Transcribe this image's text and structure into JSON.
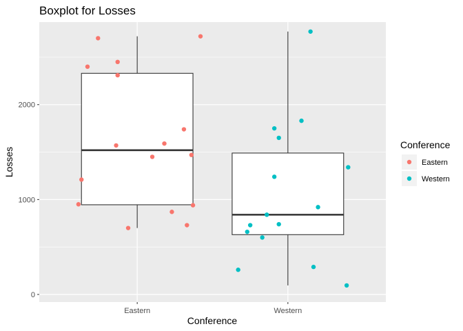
{
  "chart_data": {
    "type": "boxplot",
    "title": "Boxplot for Losses",
    "xlabel": "Conference",
    "ylabel": "Losses",
    "ylim": [
      -80,
      2870
    ],
    "yticks": [
      0,
      1000,
      2000
    ],
    "grid": true,
    "legend": {
      "title": "Conference",
      "placement": "right",
      "entries": [
        {
          "label": "Eastern",
          "color": "#F8766D"
        },
        {
          "label": "Western",
          "color": "#00BFC4"
        }
      ]
    },
    "categories": [
      "Eastern",
      "Western"
    ],
    "boxes": [
      {
        "category": "Eastern",
        "whisker_low": 700,
        "q1": 945,
        "median": 1520,
        "q3": 2330,
        "whisker_high": 2720
      },
      {
        "category": "Western",
        "whisker_low": 95,
        "q1": 630,
        "median": 840,
        "q3": 1490,
        "whisker_high": 2770
      }
    ],
    "series": [
      {
        "name": "Eastern",
        "color": "#F8766D",
        "points": [
          {
            "x": "Eastern",
            "jitter": -0.26,
            "y": 2700
          },
          {
            "x": "Eastern",
            "jitter": -0.33,
            "y": 2400
          },
          {
            "x": "Eastern",
            "jitter": -0.13,
            "y": 2450
          },
          {
            "x": "Eastern",
            "jitter": 0.42,
            "y": 2720
          },
          {
            "x": "Eastern",
            "jitter": -0.13,
            "y": 2310
          },
          {
            "x": "Eastern",
            "jitter": 0.31,
            "y": 1740
          },
          {
            "x": "Eastern",
            "jitter": 0.18,
            "y": 1590
          },
          {
            "x": "Eastern",
            "jitter": -0.14,
            "y": 1570
          },
          {
            "x": "Eastern",
            "jitter": 0.1,
            "y": 1450
          },
          {
            "x": "Eastern",
            "jitter": 0.36,
            "y": 1470
          },
          {
            "x": "Eastern",
            "jitter": -0.37,
            "y": 1210
          },
          {
            "x": "Eastern",
            "jitter": -0.39,
            "y": 950
          },
          {
            "x": "Eastern",
            "jitter": 0.37,
            "y": 940
          },
          {
            "x": "Eastern",
            "jitter": 0.23,
            "y": 870
          },
          {
            "x": "Eastern",
            "jitter": 0.33,
            "y": 730
          },
          {
            "x": "Eastern",
            "jitter": -0.06,
            "y": 700
          }
        ]
      },
      {
        "name": "Western",
        "color": "#00BFC4",
        "points": [
          {
            "x": "Western",
            "jitter": 0.15,
            "y": 2770
          },
          {
            "x": "Western",
            "jitter": 0.09,
            "y": 1830
          },
          {
            "x": "Western",
            "jitter": -0.09,
            "y": 1750
          },
          {
            "x": "Western",
            "jitter": -0.06,
            "y": 1650
          },
          {
            "x": "Western",
            "jitter": 0.4,
            "y": 1340
          },
          {
            "x": "Western",
            "jitter": -0.09,
            "y": 1240
          },
          {
            "x": "Western",
            "jitter": 0.2,
            "y": 920
          },
          {
            "x": "Western",
            "jitter": -0.14,
            "y": 840
          },
          {
            "x": "Western",
            "jitter": -0.25,
            "y": 730
          },
          {
            "x": "Western",
            "jitter": -0.06,
            "y": 740
          },
          {
            "x": "Western",
            "jitter": -0.27,
            "y": 660
          },
          {
            "x": "Western",
            "jitter": -0.17,
            "y": 600
          },
          {
            "x": "Western",
            "jitter": 0.17,
            "y": 290
          },
          {
            "x": "Western",
            "jitter": -0.33,
            "y": 260
          },
          {
            "x": "Western",
            "jitter": 0.39,
            "y": 95
          }
        ]
      }
    ]
  }
}
